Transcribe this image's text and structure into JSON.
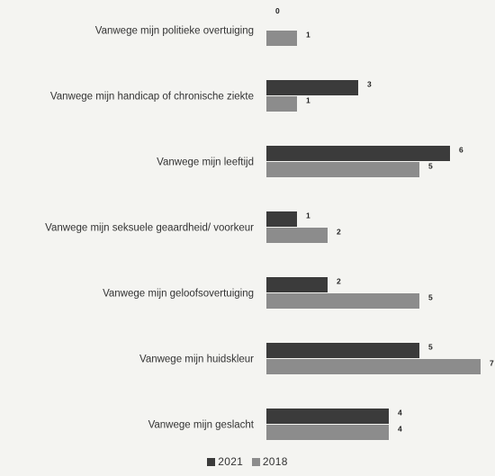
{
  "chart_data": {
    "type": "bar",
    "orientation": "horizontal",
    "categories": [
      "Vanwege mijn politieke overtuiging",
      "Vanwege mijn handicap of chronische ziekte",
      "Vanwege mijn leeftijd",
      "Vanwege mijn seksuele geaardheid/ voorkeur",
      "Vanwege mijn geloofsovertuiging",
      "Vanwege mijn huidskleur",
      "Vanwege mijn geslacht"
    ],
    "series": [
      {
        "name": "2021",
        "color": "#3b3b3b",
        "values": [
          0,
          3,
          6,
          1,
          2,
          5,
          4
        ]
      },
      {
        "name": "2018",
        "color": "#8c8c8c",
        "values": [
          1,
          1,
          5,
          2,
          5,
          7,
          4
        ]
      }
    ],
    "title": "",
    "xlabel": "",
    "ylabel": "",
    "xlim": [
      0,
      7
    ],
    "grid": false,
    "legend": "bottom-center"
  }
}
